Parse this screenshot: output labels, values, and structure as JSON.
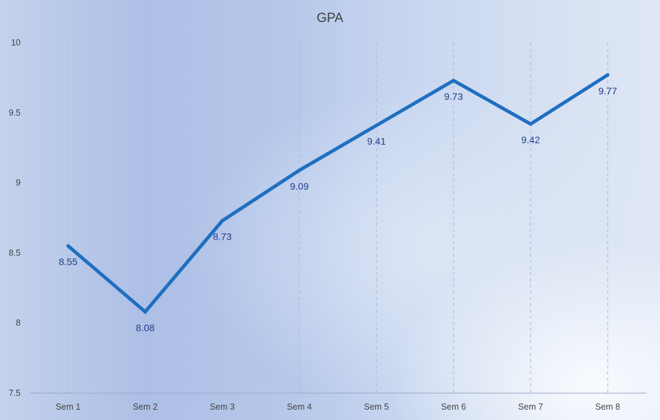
{
  "chart_data": {
    "type": "line",
    "title": "GPA",
    "categories": [
      "Sem 1",
      "Sem 2",
      "Sem 3",
      "Sem 4",
      "Sem 5",
      "Sem 6",
      "Sem 7",
      "Sem 8"
    ],
    "values": [
      8.55,
      8.08,
      8.73,
      9.09,
      9.41,
      9.73,
      9.42,
      9.77
    ],
    "data_labels": [
      "8.55",
      "8.08",
      "8.73",
      "9.09",
      "9.41",
      "9.73",
      "9.42",
      "9.77"
    ],
    "ylim": [
      7.5,
      10
    ],
    "y_ticks": [
      "7.5",
      "8",
      "8.5",
      "9",
      "9.5",
      "10"
    ],
    "xlabel": "",
    "ylabel": "",
    "grid": "vertical dashed",
    "legend": "none",
    "line_color": "#1f6fc0",
    "label_color": "#1f3c88"
  }
}
